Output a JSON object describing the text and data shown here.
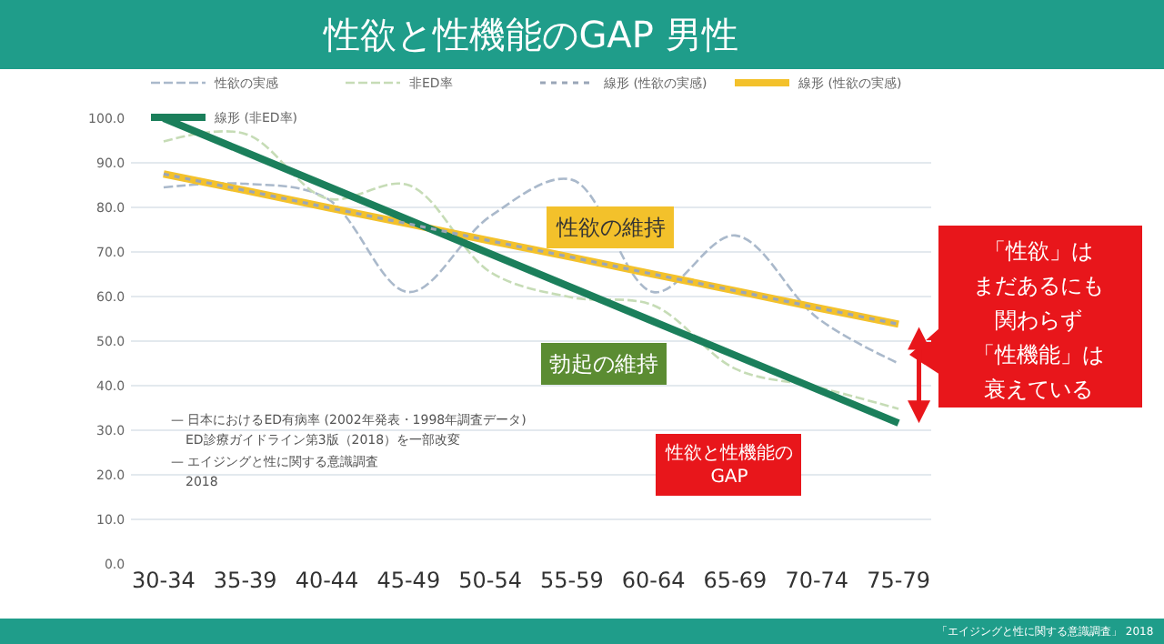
{
  "chart_data": {
    "type": "line",
    "title": "性欲と性機能のGAP 男性",
    "categories": [
      "30-34",
      "35-39",
      "40-44",
      "45-49",
      "50-54",
      "55-59",
      "60-64",
      "65-69",
      "70-74",
      "75-79"
    ],
    "series": [
      {
        "name": "性欲の実感",
        "color": "#aab9cb",
        "line_style": "dashed",
        "values": [
          84.5,
          85.3,
          82,
          61,
          78,
          86.2,
          61,
          73.7,
          55.3,
          45
        ]
      },
      {
        "name": "非ED率",
        "color": "#c6dcb6",
        "line_style": "dashed",
        "values": [
          94.8,
          96.5,
          82,
          85,
          65.5,
          59.8,
          58,
          43.8,
          39.7,
          34.8
        ]
      },
      {
        "name": "線形 (性欲の実感)",
        "color": "#9aa6b8",
        "line_style": "dotted",
        "values": [
          87.5,
          83.8,
          80,
          76.3,
          72.5,
          68.8,
          65,
          61.3,
          57.5,
          53.8
        ]
      },
      {
        "name": "線形 (性欲の実感)",
        "color": "#f3c12b",
        "line_style": "solid",
        "values": [
          87.5,
          83.8,
          80,
          76.3,
          72.5,
          68.8,
          65,
          61.3,
          57.5,
          53.8
        ]
      },
      {
        "name": "線形 (非ED率)",
        "color": "#1b7f5b",
        "line_style": "solid",
        "values": [
          100,
          92.4,
          84.8,
          77.2,
          69.6,
          62,
          54.4,
          46.8,
          39.2,
          31.6
        ]
      }
    ],
    "ylim": [
      0,
      100
    ],
    "yticks": [
      {
        "value": 0,
        "label": "0.0"
      },
      {
        "value": 10,
        "label": "10.0"
      },
      {
        "value": 20,
        "label": "20.0"
      },
      {
        "value": 30,
        "label": "30.0"
      },
      {
        "value": 40,
        "label": "40.0"
      },
      {
        "value": 50,
        "label": "50.0"
      },
      {
        "value": 60,
        "label": "60.0"
      },
      {
        "value": 70,
        "label": "70.0"
      },
      {
        "value": 80,
        "label": "80.0"
      },
      {
        "value": 90,
        "label": "90.0"
      },
      {
        "value": 100,
        "label": "100.0"
      }
    ],
    "grid": "y",
    "legend": "top",
    "marker": "none",
    "annotations": [
      "性欲の維持",
      "勃起の維持",
      "性欲と性機能の\nGAP",
      "「性欲」は",
      "まだあるにも",
      "関わらず",
      "「性機能」は",
      "衰えている",
      "— 日本におけるED有病率 (2002年発表・1998年調査データ)",
      "ED診療ガイドライン第3版（2018）を一部改変",
      "— エイジングと性に関する意識調査",
      "2018",
      "「エイジングと性に関する意識調査」 2018"
    ]
  }
}
